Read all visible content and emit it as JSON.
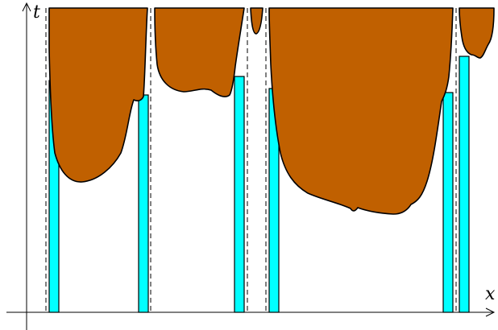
{
  "axes": {
    "x_label": "x",
    "t_label": "t"
  },
  "colors": {
    "region_fill": "#c06000",
    "strip_fill": "#00ffff",
    "outline": "#000000",
    "background": "#ffffff"
  }
}
